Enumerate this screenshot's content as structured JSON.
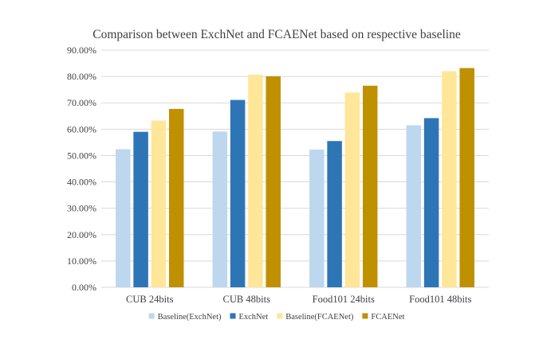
{
  "chart_data": {
    "type": "bar",
    "title": "Comparison between ExchNet and FCAENet based on respective baseline",
    "xlabel": "",
    "ylabel": "",
    "ylim": [
      0,
      90
    ],
    "ytick_step": 10,
    "ytick_labels": [
      "0.00%",
      "10.00%",
      "20.00%",
      "30.00%",
      "40.00%",
      "50.00%",
      "60.00%",
      "70.00%",
      "80.00%",
      "90.00%"
    ],
    "grid": true,
    "legend_position": "bottom",
    "categories": [
      "CUB 24bits",
      "CUB 48bits",
      "Food101 24bits",
      "Food101 48bits"
    ],
    "series": [
      {
        "name": "Baseline(ExchNet)",
        "color": "#bdd7ee",
        "values": [
          52.4,
          59.1,
          52.3,
          61.5
        ]
      },
      {
        "name": "ExchNet",
        "color": "#2e75b6",
        "values": [
          59.0,
          71.1,
          55.5,
          64.2
        ]
      },
      {
        "name": "Baseline(FCAENet)",
        "color": "#ffe699",
        "values": [
          63.3,
          80.7,
          73.9,
          82.0
        ]
      },
      {
        "name": "FCAENet",
        "color": "#bf9000",
        "values": [
          67.7,
          80.1,
          76.5,
          83.2
        ]
      }
    ]
  }
}
